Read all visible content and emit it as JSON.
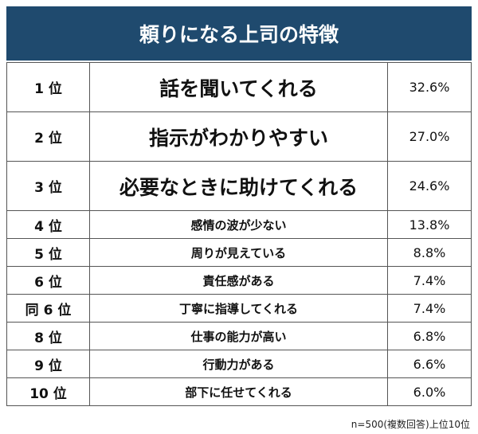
{
  "header": {
    "title": "頼りになる上司の特徴"
  },
  "table": {
    "rows": [
      [
        "1 位",
        "話を聞いてくれる",
        "32.6%"
      ],
      [
        "2 位",
        "指示がわかりやすい",
        "27.0%"
      ],
      [
        "3 位",
        "必要なときに助けてくれる",
        "24.6%"
      ],
      [
        "4 位",
        "感情の波が少ない",
        "13.8%"
      ],
      [
        "5 位",
        "周りが見えている",
        "8.8%"
      ],
      [
        "6 位",
        "責任感がある",
        "7.4%"
      ],
      [
        "同 6 位",
        "丁寧に指導してくれる",
        "7.4%"
      ],
      [
        "8 位",
        "仕事の能力が高い",
        "6.8%"
      ],
      [
        "9 位",
        "行動力がある",
        "6.6%"
      ],
      [
        "10 位",
        "部下に任せてくれる",
        "6.0%"
      ]
    ]
  },
  "footer": {
    "note": "n=500(複数回答)上位10位"
  }
}
